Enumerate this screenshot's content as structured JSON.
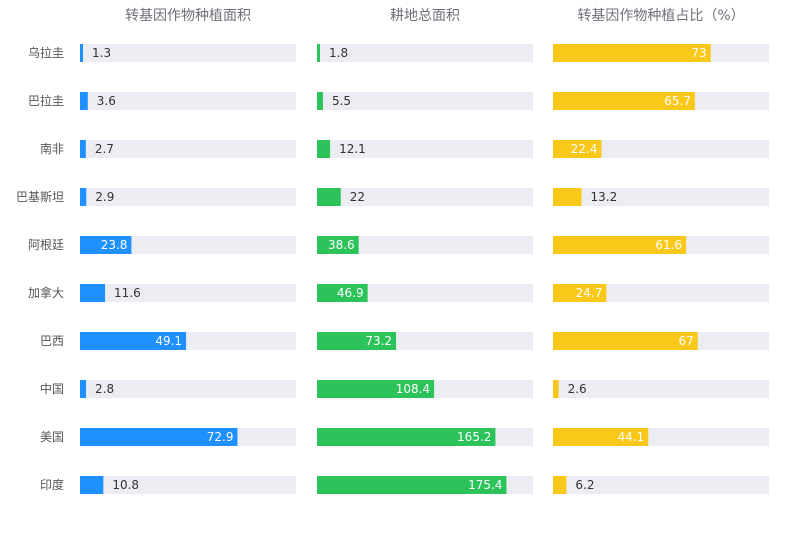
{
  "chart_data": {
    "type": "bar",
    "orientation": "horizontal",
    "categories": [
      "乌拉圭",
      "巴拉圭",
      "南非",
      "巴基斯坦",
      "阿根廷",
      "加拿大",
      "巴西",
      "中国",
      "美国",
      "印度"
    ],
    "panels": [
      {
        "title": "转基因作物种植面积",
        "color": "#1e90ff",
        "values": [
          1.3,
          3.6,
          2.7,
          2.9,
          23.8,
          11.6,
          49.1,
          2.8,
          72.9,
          10.8
        ],
        "max": 100
      },
      {
        "title": "耕地总面积",
        "color": "#2dc35b",
        "values": [
          1.8,
          5.5,
          12.1,
          22,
          38.6,
          46.9,
          73.2,
          108.4,
          165.2,
          175.4
        ],
        "max": 200
      },
      {
        "title": "转基因作物种植占比（%）",
        "color": "#fac818",
        "values": [
          73,
          65.7,
          22.4,
          13.2,
          61.6,
          24.7,
          67,
          2.6,
          44.1,
          6.2
        ],
        "max": 100
      }
    ],
    "track_color": "#ebedf2",
    "grid": false,
    "legend": "none"
  }
}
